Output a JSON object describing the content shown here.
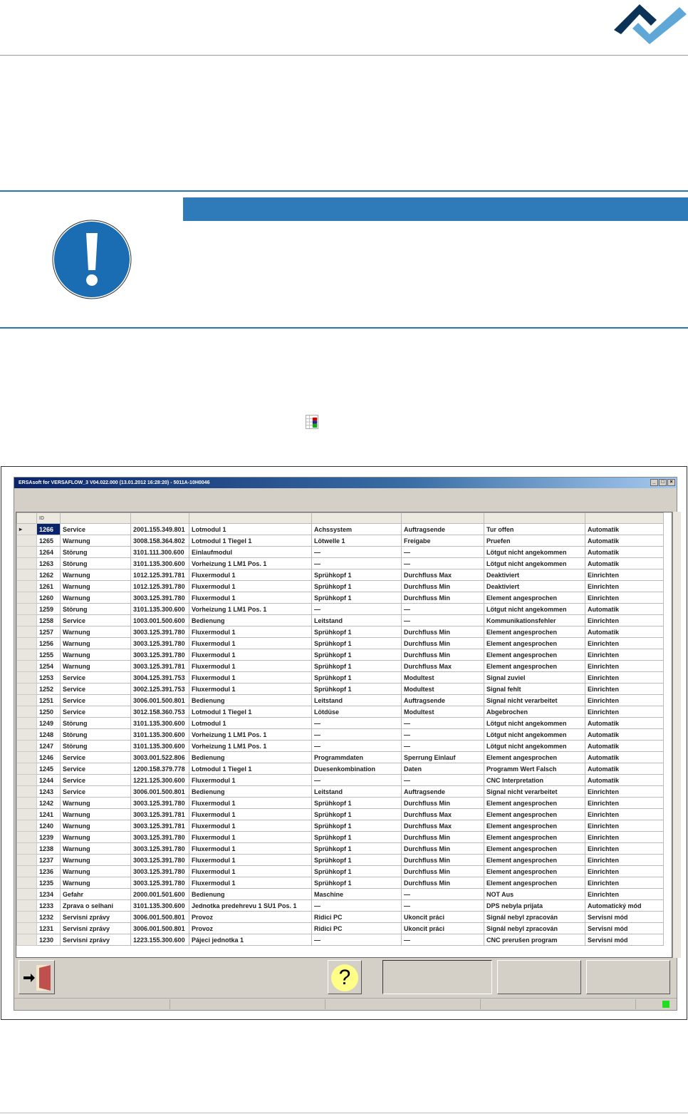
{
  "logo": {
    "colors": [
      "#0b3357",
      "#5ea7d6"
    ]
  },
  "notice": {
    "icon": "exclamation-circle-icon",
    "bar_color": "#2f7ab8"
  },
  "inline_icon": "fault-list-icon",
  "window": {
    "title": "ERSAsoft for VERSAFLOW_3 V04.022.000 (13.01.2012 16:28:20) - 5011A-10H0046",
    "controls": [
      "_",
      "□",
      "×"
    ],
    "table": {
      "header": [
        "ID",
        "",
        "",
        "",
        "",
        "",
        "",
        ""
      ],
      "selected_id": "1266",
      "rows": [
        [
          "1266",
          "Service",
          "2001.155.349.801",
          "Lotmodul 1",
          "Achssystem",
          "Auftragsende",
          "Tur offen",
          "Automatik"
        ],
        [
          "1265",
          "Warnung",
          "3008.158.364.802",
          "Lotmodul 1 Tiegel 1",
          "Lötwelle 1",
          "Freigabe",
          "Pruefen",
          "Automatik"
        ],
        [
          "1264",
          "Störung",
          "3101.111.300.600",
          "Einlaufmodul",
          "—",
          "—",
          "Lötgut nicht angekommen",
          "Automatik"
        ],
        [
          "1263",
          "Störung",
          "3101.135.300.600",
          "Vorheizung 1 LM1 Pos. 1",
          "—",
          "—",
          "Lötgut nicht angekommen",
          "Automatik"
        ],
        [
          "1262",
          "Warnung",
          "1012.125.391.781",
          "Fluxermodul 1",
          "Sprühkopf 1",
          "Durchfluss Max",
          "Deaktiviert",
          "Einrichten"
        ],
        [
          "1261",
          "Warnung",
          "1012.125.391.780",
          "Fluxermodul 1",
          "Sprühkopf 1",
          "Durchfluss Min",
          "Deaktiviert",
          "Einrichten"
        ],
        [
          "1260",
          "Warnung",
          "3003.125.391.780",
          "Fluxermodul 1",
          "Sprühkopf 1",
          "Durchfluss Min",
          "Element angesprochen",
          "Einrichten"
        ],
        [
          "1259",
          "Störung",
          "3101.135.300.600",
          "Vorheizung 1 LM1 Pos. 1",
          "—",
          "—",
          "Lötgut nicht angekommen",
          "Automatik"
        ],
        [
          "1258",
          "Service",
          "1003.001.500.600",
          "Bedienung",
          "Leitstand",
          "—",
          "Kommunikationsfehler",
          "Einrichten"
        ],
        [
          "1257",
          "Warnung",
          "3003.125.391.780",
          "Fluxermodul 1",
          "Sprühkopf 1",
          "Durchfluss Min",
          "Element angesprochen",
          "Automatik"
        ],
        [
          "1256",
          "Warnung",
          "3003.125.391.780",
          "Fluxermodul 1",
          "Sprühkopf 1",
          "Durchfluss Min",
          "Element angesprochen",
          "Einrichten"
        ],
        [
          "1255",
          "Warnung",
          "3003.125.391.780",
          "Fluxermodul 1",
          "Sprühkopf 1",
          "Durchfluss Min",
          "Element angesprochen",
          "Einrichten"
        ],
        [
          "1254",
          "Warnung",
          "3003.125.391.781",
          "Fluxermodul 1",
          "Sprühkopf 1",
          "Durchfluss Max",
          "Element angesprochen",
          "Einrichten"
        ],
        [
          "1253",
          "Service",
          "3004.125.391.753",
          "Fluxermodul 1",
          "Sprühkopf 1",
          "Modultest",
          "Signal zuviel",
          "Einrichten"
        ],
        [
          "1252",
          "Service",
          "3002.125.391.753",
          "Fluxermodul 1",
          "Sprühkopf 1",
          "Modultest",
          "Signal fehlt",
          "Einrichten"
        ],
        [
          "1251",
          "Service",
          "3006.001.500.801",
          "Bedienung",
          "Leitstand",
          "Auftragsende",
          "Signal nicht verarbeitet",
          "Einrichten"
        ],
        [
          "1250",
          "Service",
          "3012.158.360.753",
          "Lotmodul 1 Tiegel 1",
          "Lötdüse",
          "Modultest",
          "Abgebrochen",
          "Einrichten"
        ],
        [
          "1249",
          "Störung",
          "3101.135.300.600",
          "Lotmodul 1",
          "—",
          "—",
          "Lötgut nicht angekommen",
          "Automatik"
        ],
        [
          "1248",
          "Störung",
          "3101.135.300.600",
          "Vorheizung 1 LM1 Pos. 1",
          "—",
          "—",
          "Lötgut nicht angekommen",
          "Automatik"
        ],
        [
          "1247",
          "Störung",
          "3101.135.300.600",
          "Vorheizung 1 LM1 Pos. 1",
          "—",
          "—",
          "Lötgut nicht angekommen",
          "Automatik"
        ],
        [
          "1246",
          "Service",
          "3003.001.522.806",
          "Bedienung",
          "Programmdaten",
          "Sperrung Einlauf",
          "Element angesprochen",
          "Automatik"
        ],
        [
          "1245",
          "Service",
          "1200.158.379.778",
          "Lotmodul 1 Tiegel 1",
          "Duesenkombination",
          "Daten",
          "Programm Wert Falsch",
          "Automatik"
        ],
        [
          "1244",
          "Service",
          "1221.125.300.600",
          "Fluxermodul 1",
          "—",
          "—",
          "CNC Interpretation",
          "Automatik"
        ],
        [
          "1243",
          "Service",
          "3006.001.500.801",
          "Bedienung",
          "Leitstand",
          "Auftragsende",
          "Signal nicht verarbeitet",
          "Einrichten"
        ],
        [
          "1242",
          "Warnung",
          "3003.125.391.780",
          "Fluxermodul 1",
          "Sprühkopf 1",
          "Durchfluss Min",
          "Element angesprochen",
          "Einrichten"
        ],
        [
          "1241",
          "Warnung",
          "3003.125.391.781",
          "Fluxermodul 1",
          "Sprühkopf 1",
          "Durchfluss Max",
          "Element angesprochen",
          "Einrichten"
        ],
        [
          "1240",
          "Warnung",
          "3003.125.391.781",
          "Fluxermodul 1",
          "Sprühkopf 1",
          "Durchfluss Max",
          "Element angesprochen",
          "Einrichten"
        ],
        [
          "1239",
          "Warnung",
          "3003.125.391.780",
          "Fluxermodul 1",
          "Sprühkopf 1",
          "Durchfluss Min",
          "Element angesprochen",
          "Einrichten"
        ],
        [
          "1238",
          "Warnung",
          "3003.125.391.780",
          "Fluxermodul 1",
          "Sprühkopf 1",
          "Durchfluss Min",
          "Element angesprochen",
          "Einrichten"
        ],
        [
          "1237",
          "Warnung",
          "3003.125.391.780",
          "Fluxermodul 1",
          "Sprühkopf 1",
          "Durchfluss Min",
          "Element angesprochen",
          "Einrichten"
        ],
        [
          "1236",
          "Warnung",
          "3003.125.391.780",
          "Fluxermodul 1",
          "Sprühkopf 1",
          "Durchfluss Min",
          "Element angesprochen",
          "Einrichten"
        ],
        [
          "1235",
          "Warnung",
          "3003.125.391.780",
          "Fluxermodul 1",
          "Sprühkopf 1",
          "Durchfluss Min",
          "Element angesprochen",
          "Einrichten"
        ],
        [
          "1234",
          "Gefahr",
          "2000.001.501.600",
          "Bedienung",
          "Maschine",
          "—",
          "NOT Aus",
          "Einrichten"
        ],
        [
          "1233",
          "Zprava o selhani",
          "3101.135.300.600",
          "Jednotka predehrevu 1 SU1 Pos. 1",
          "—",
          "—",
          "DPS nebyla prijata",
          "Automatický mód"
        ],
        [
          "1232",
          "Servisni zprávy",
          "3006.001.500.801",
          "Provoz",
          "Ridici PC",
          "Ukoncit práci",
          "Signál nebyl zpracován",
          "Servisni mód"
        ],
        [
          "1231",
          "Servisni zprávy",
          "3006.001.500.801",
          "Provoz",
          "Ridici PC",
          "Ukoncit práci",
          "Signál nebyl zpracován",
          "Servisni mód"
        ],
        [
          "1230",
          "Servisni zprávy",
          "1223.155.300.600",
          "Pájeci jednotka 1",
          "—",
          "—",
          "CNC prerušen program",
          "Servisni mód"
        ]
      ]
    },
    "buttons": {
      "exit_icon": "exit-door-icon",
      "help_label": "?"
    },
    "status": {
      "led_color": "#22dd22"
    }
  }
}
